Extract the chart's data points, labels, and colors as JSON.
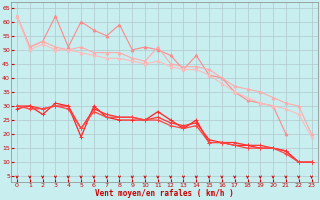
{
  "title": "",
  "xlabel": "Vent moyen/en rafales ( km/h )",
  "bg_color": "#c8eef0",
  "grid_color": "#b0c8cc",
  "xlim": [
    -0.5,
    23.5
  ],
  "ylim": [
    3,
    67
  ],
  "yticks": [
    5,
    10,
    15,
    20,
    25,
    30,
    35,
    40,
    45,
    50,
    55,
    60,
    65
  ],
  "xticks": [
    0,
    1,
    2,
    3,
    4,
    5,
    6,
    7,
    8,
    9,
    10,
    11,
    12,
    13,
    14,
    15,
    16,
    17,
    18,
    19,
    20,
    21,
    22,
    23
  ],
  "lines": [
    {
      "color": "#ff8888",
      "lw": 0.8,
      "marker": "^",
      "ms": 2.0,
      "y": [
        62,
        51,
        53,
        62,
        51,
        60,
        57,
        55,
        59,
        50,
        51,
        50,
        48,
        43,
        48,
        41,
        40,
        35,
        32,
        31,
        30,
        20,
        null,
        null
      ]
    },
    {
      "color": "#ffaaaa",
      "lw": 0.8,
      "marker": "^",
      "ms": 2.0,
      "y": [
        62,
        51,
        53,
        51,
        50,
        51,
        49,
        49,
        49,
        47,
        46,
        51,
        45,
        44,
        44,
        43,
        40,
        37,
        36,
        35,
        33,
        31,
        30,
        20
      ]
    },
    {
      "color": "#ffbbbb",
      "lw": 0.8,
      "marker": "^",
      "ms": 2.0,
      "y": [
        62,
        50,
        52,
        50,
        50,
        49,
        48,
        47,
        47,
        46,
        45,
        46,
        44,
        43,
        43,
        41,
        38,
        35,
        33,
        31,
        30,
        29,
        27,
        19
      ]
    },
    {
      "color": "#ff2222",
      "lw": 0.9,
      "marker": "+",
      "ms": 3.0,
      "y": [
        29,
        30,
        27,
        31,
        30,
        19,
        30,
        26,
        25,
        25,
        25,
        28,
        25,
        22,
        25,
        17,
        17,
        16,
        16,
        15,
        15,
        14,
        10,
        10
      ]
    },
    {
      "color": "#ff3333",
      "lw": 0.9,
      "marker": "+",
      "ms": 3.0,
      "y": [
        30,
        30,
        29,
        30,
        30,
        22,
        29,
        27,
        26,
        26,
        25,
        26,
        24,
        23,
        24,
        18,
        17,
        17,
        16,
        16,
        15,
        14,
        10,
        10
      ]
    },
    {
      "color": "#ff4444",
      "lw": 0.9,
      "marker": "+",
      "ms": 3.0,
      "y": [
        30,
        29,
        29,
        30,
        29,
        22,
        28,
        26,
        26,
        26,
        25,
        25,
        23,
        22,
        23,
        17,
        17,
        16,
        15,
        15,
        15,
        13,
        10,
        10
      ]
    }
  ],
  "arrow_color": "#cc0000",
  "xlabel_color": "#cc0000",
  "xlabel_fontsize": 5.5,
  "tick_fontsize": 4.5,
  "tick_color": "#cc0000",
  "spine_color": "#888888"
}
